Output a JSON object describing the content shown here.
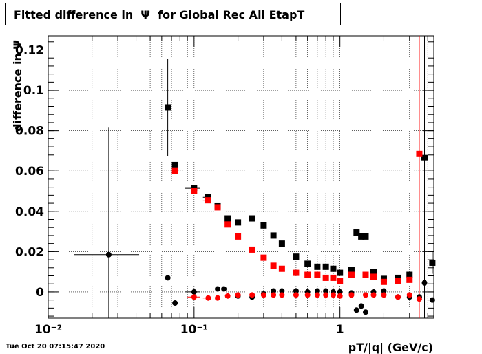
{
  "title": "Fitted difference in  Ψ  for Global Rec All EtapT",
  "footer": "Tue Oct 20 07:15:47 2020",
  "chart_data": {
    "type": "scatter",
    "title": "Fitted difference in  Ψ  for Global Rec All EtapT",
    "xlabel": "pT/|q| (GeV/c)",
    "ylabel": "difference in Ψ",
    "x_scale": "log",
    "xlim": [
      0.01,
      4.4
    ],
    "ylim": [
      -0.013,
      0.127
    ],
    "grid": true,
    "x_ticks": [
      {
        "value": 0.01,
        "label": "10⁻²"
      },
      {
        "value": 0.1,
        "label": "10⁻¹"
      },
      {
        "value": 1,
        "label": "1"
      }
    ],
    "y_ticks": [
      {
        "value": 0,
        "label": "0"
      },
      {
        "value": 0.02,
        "label": "0.02"
      },
      {
        "value": 0.04,
        "label": "0.04"
      },
      {
        "value": 0.06,
        "label": "0.06"
      },
      {
        "value": 0.08,
        "label": "0.08"
      },
      {
        "value": 0.1,
        "label": "0.1"
      },
      {
        "value": 0.12,
        "label": "0.12"
      }
    ],
    "vlines": [
      {
        "x": 3.5,
        "color": "#ff0000"
      },
      {
        "x": 3.8,
        "color": "#000000"
      }
    ],
    "series": [
      {
        "color": "#000000",
        "marker": "circle",
        "points": [
          [
            0.026,
            0.0185,
            0.063,
            0.015,
            0.042
          ],
          [
            0.066,
            0.007,
            0.0,
            0.063,
            0.069
          ],
          [
            0.074,
            -0.0055,
            0.0,
            0.071,
            0.077
          ],
          [
            0.1,
            0.0,
            0.0,
            0.087,
            0.11
          ],
          [
            0.145,
            0.0015,
            0.0,
            0.14,
            0.15
          ],
          [
            0.16,
            0.0015,
            0.0,
            0.155,
            0.165
          ],
          [
            0.2,
            -0.002,
            0.0,
            0.195,
            0.205
          ],
          [
            0.25,
            -0.0025,
            0.0,
            0.24,
            0.26
          ],
          [
            0.3,
            -0.001,
            0.0,
            0.29,
            0.31
          ],
          [
            0.35,
            0.0005,
            0.0,
            0.34,
            0.36
          ],
          [
            0.4,
            0.0005,
            0.0,
            0.39,
            0.41
          ],
          [
            0.5,
            0.0005,
            0.0,
            0.49,
            0.51
          ],
          [
            0.6,
            0.0,
            0.0,
            0.59,
            0.61
          ],
          [
            0.7,
            0.0005,
            0.0,
            0.69,
            0.71
          ],
          [
            0.8,
            0.0005,
            0.0,
            0.79,
            0.81
          ],
          [
            0.9,
            0.0,
            0.0,
            0.89,
            0.91
          ],
          [
            1.0,
            0.0,
            0.0,
            0.99,
            1.01
          ],
          [
            1.2,
            -0.0005,
            0.0,
            1.19,
            1.21
          ],
          [
            1.3,
            -0.009,
            0.0,
            1.29,
            1.31
          ],
          [
            1.4,
            -0.007,
            0.0,
            1.39,
            1.41
          ],
          [
            1.5,
            -0.01,
            0.0,
            1.49,
            1.51
          ],
          [
            1.7,
            0.0,
            0.0,
            1.69,
            1.71
          ],
          [
            2.0,
            0.0005,
            0.0,
            1.99,
            2.01
          ],
          [
            2.5,
            -0.0025,
            0.0,
            2.49,
            2.51
          ],
          [
            3.0,
            -0.0025,
            0.0,
            2.99,
            3.01
          ],
          [
            3.5,
            -0.0025,
            0.0,
            3.49,
            3.51
          ],
          [
            3.8,
            0.0045,
            0.0,
            3.79,
            3.81
          ],
          [
            4.3,
            -0.004,
            0.0,
            4.29,
            4.31
          ]
        ]
      },
      {
        "color": "#000000",
        "marker": "square",
        "points": [
          [
            0.066,
            0.0915,
            0.024,
            0.063,
            0.069
          ],
          [
            0.074,
            0.063,
            0.0,
            0.071,
            0.077
          ],
          [
            0.1,
            0.0515,
            0.0,
            0.087,
            0.11
          ],
          [
            0.125,
            0.047,
            0.0,
            0.115,
            0.13
          ],
          [
            0.145,
            0.0425,
            0.0,
            0.14,
            0.15
          ],
          [
            0.17,
            0.0365,
            0.0,
            0.165,
            0.175
          ],
          [
            0.2,
            0.0345,
            0.0,
            0.195,
            0.205
          ],
          [
            0.25,
            0.0365,
            0.0,
            0.24,
            0.26
          ],
          [
            0.3,
            0.033,
            0.0,
            0.29,
            0.31
          ],
          [
            0.35,
            0.028,
            0.0,
            0.34,
            0.36
          ],
          [
            0.4,
            0.024,
            0.0,
            0.39,
            0.41
          ],
          [
            0.5,
            0.0175,
            0.0,
            0.49,
            0.51
          ],
          [
            0.6,
            0.014,
            0.0,
            0.59,
            0.61
          ],
          [
            0.7,
            0.0125,
            0.0,
            0.69,
            0.71
          ],
          [
            0.8,
            0.0125,
            0.0,
            0.79,
            0.81
          ],
          [
            0.9,
            0.0115,
            0.0,
            0.89,
            0.91
          ],
          [
            1.0,
            0.0095,
            0.0,
            0.99,
            1.01
          ],
          [
            1.2,
            0.011,
            0.0,
            1.19,
            1.21
          ],
          [
            1.3,
            0.0295,
            0.0,
            1.29,
            1.31
          ],
          [
            1.4,
            0.0275,
            0.0,
            1.39,
            1.41
          ],
          [
            1.5,
            0.0275,
            0.0,
            1.49,
            1.51
          ],
          [
            1.7,
            0.01,
            0.0,
            1.69,
            1.71
          ],
          [
            2.0,
            0.0065,
            0.0,
            1.99,
            2.01
          ],
          [
            2.5,
            0.007,
            0.0,
            2.49,
            2.51
          ],
          [
            3.0,
            0.0085,
            0.0,
            2.99,
            3.01
          ],
          [
            3.8,
            0.0665,
            0.0,
            3.79,
            3.81
          ],
          [
            4.3,
            0.0145,
            0.0055,
            4.29,
            4.31
          ]
        ]
      },
      {
        "color": "#ff0000",
        "marker": "circle",
        "points": [
          [
            0.1,
            -0.0025,
            0.0,
            0.09,
            0.11
          ],
          [
            0.125,
            -0.003,
            0.0,
            0.115,
            0.13
          ],
          [
            0.145,
            -0.003,
            0.0,
            0.14,
            0.15
          ],
          [
            0.17,
            -0.002,
            0.0,
            0.165,
            0.175
          ],
          [
            0.2,
            -0.0015,
            0.0,
            0.195,
            0.205
          ],
          [
            0.25,
            -0.0015,
            0.0,
            0.24,
            0.26
          ],
          [
            0.3,
            -0.0015,
            0.0,
            0.29,
            0.31
          ],
          [
            0.35,
            -0.0015,
            0.0,
            0.34,
            0.36
          ],
          [
            0.4,
            -0.0015,
            0.0,
            0.39,
            0.41
          ],
          [
            0.5,
            -0.0015,
            0.0,
            0.49,
            0.51
          ],
          [
            0.6,
            -0.0015,
            0.0,
            0.59,
            0.61
          ],
          [
            0.7,
            -0.0015,
            0.0,
            0.69,
            0.71
          ],
          [
            0.8,
            -0.0015,
            0.0,
            0.79,
            0.81
          ],
          [
            0.9,
            -0.0015,
            0.0,
            0.89,
            0.91
          ],
          [
            1.0,
            -0.002,
            0.0,
            0.99,
            1.01
          ],
          [
            1.2,
            -0.0015,
            0.0,
            1.19,
            1.21
          ],
          [
            1.5,
            -0.0015,
            0.0,
            1.49,
            1.51
          ],
          [
            1.7,
            -0.0015,
            0.0,
            1.69,
            1.71
          ],
          [
            2.0,
            -0.0015,
            0.0,
            1.99,
            2.01
          ],
          [
            2.5,
            -0.0025,
            0.0,
            2.49,
            2.51
          ],
          [
            3.0,
            -0.0015,
            0.0,
            2.99,
            3.01
          ],
          [
            3.5,
            -0.0035,
            0.0,
            3.49,
            3.51
          ]
        ]
      },
      {
        "color": "#ff0000",
        "marker": "square",
        "points": [
          [
            0.074,
            0.06,
            0.0,
            0.071,
            0.077
          ],
          [
            0.1,
            0.05,
            0.0,
            0.087,
            0.11
          ],
          [
            0.125,
            0.0455,
            0.0,
            0.115,
            0.13
          ],
          [
            0.145,
            0.042,
            0.0,
            0.14,
            0.15
          ],
          [
            0.17,
            0.0335,
            0.0,
            0.165,
            0.175
          ],
          [
            0.2,
            0.0275,
            0.0,
            0.195,
            0.205
          ],
          [
            0.25,
            0.021,
            0.0,
            0.24,
            0.26
          ],
          [
            0.3,
            0.017,
            0.0,
            0.29,
            0.31
          ],
          [
            0.35,
            0.013,
            0.0,
            0.34,
            0.36
          ],
          [
            0.4,
            0.0115,
            0.0,
            0.39,
            0.41
          ],
          [
            0.5,
            0.0095,
            0.0,
            0.49,
            0.51
          ],
          [
            0.6,
            0.0085,
            0.0,
            0.59,
            0.61
          ],
          [
            0.7,
            0.0085,
            0.0,
            0.69,
            0.71
          ],
          [
            0.8,
            0.007,
            0.0,
            0.79,
            0.81
          ],
          [
            0.9,
            0.007,
            0.0,
            0.89,
            0.91
          ],
          [
            1.0,
            0.0055,
            0.0,
            0.99,
            1.01
          ],
          [
            1.2,
            0.0085,
            0.0,
            1.19,
            1.21
          ],
          [
            1.5,
            0.0085,
            0.0,
            1.49,
            1.51
          ],
          [
            1.7,
            0.0075,
            0.0,
            1.69,
            1.71
          ],
          [
            2.0,
            0.005,
            0.0,
            1.99,
            2.01
          ],
          [
            2.5,
            0.0055,
            0.0,
            2.49,
            2.51
          ],
          [
            3.0,
            0.006,
            0.0,
            2.99,
            3.01
          ],
          [
            3.5,
            0.0685,
            0.0,
            3.49,
            3.51
          ]
        ]
      }
    ]
  }
}
